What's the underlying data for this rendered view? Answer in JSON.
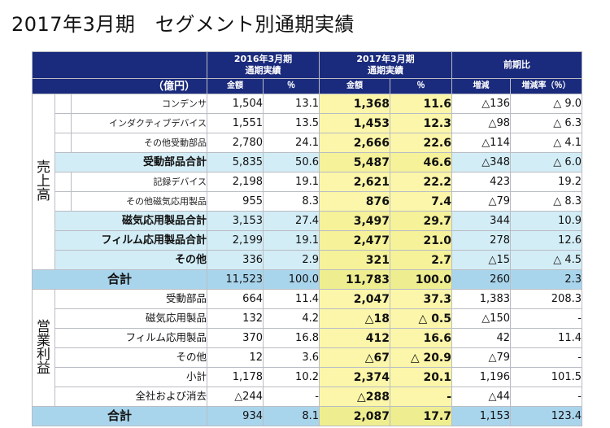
{
  "title": "2017年3月期　セグメント別通期実績",
  "header": {
    "period_prev": "2016年3月期",
    "period_prev_sub": "通期実績",
    "period_curr": "2017年3月期",
    "period_curr_sub": "通期実績",
    "comparison": "前期比",
    "unit": "（億円）",
    "col_amount": "金額",
    "col_pct": "％",
    "col_change": "増減",
    "col_change_rate": "増減率（％）"
  },
  "sections": {
    "sales": "売上高",
    "profit": "営業利益"
  },
  "sales_rows": [
    {
      "label": "コンデンサ",
      "style": "sub",
      "prev_amt": "1,504",
      "prev_pct": "13.1",
      "curr_amt": "1,368",
      "curr_pct": "11.6",
      "chg": "△136",
      "chg_rate": "△ 9.0"
    },
    {
      "label": "インダクティブデバイス",
      "style": "sub",
      "prev_amt": "1,551",
      "prev_pct": "13.5",
      "curr_amt": "1,453",
      "curr_pct": "12.3",
      "chg": "△98",
      "chg_rate": "△ 6.3"
    },
    {
      "label": "その他受動部品",
      "style": "sub",
      "prev_amt": "2,780",
      "prev_pct": "24.1",
      "curr_amt": "2,666",
      "curr_pct": "22.6",
      "chg": "△114",
      "chg_rate": "△ 4.1"
    },
    {
      "label": "受動部品合計",
      "style": "subtotal",
      "prev_amt": "5,835",
      "prev_pct": "50.6",
      "curr_amt": "5,487",
      "curr_pct": "46.6",
      "chg": "△348",
      "chg_rate": "△ 6.0"
    },
    {
      "label": "記録デバイス",
      "style": "sub",
      "prev_amt": "2,198",
      "prev_pct": "19.1",
      "curr_amt": "2,621",
      "curr_pct": "22.2",
      "chg": "423",
      "chg_rate": "19.2"
    },
    {
      "label": "その他磁気応用製品",
      "style": "sub",
      "prev_amt": "955",
      "prev_pct": "8.3",
      "curr_amt": "876",
      "curr_pct": "7.4",
      "chg": "△79",
      "chg_rate": "△ 8.3"
    },
    {
      "label": "磁気応用製品合計",
      "style": "subtotal",
      "prev_amt": "3,153",
      "prev_pct": "27.4",
      "curr_amt": "3,497",
      "curr_pct": "29.7",
      "chg": "344",
      "chg_rate": "10.9"
    },
    {
      "label": "フィルム応用製品合計",
      "style": "subtotal",
      "prev_amt": "2,199",
      "prev_pct": "19.1",
      "curr_amt": "2,477",
      "curr_pct": "21.0",
      "chg": "278",
      "chg_rate": "12.6"
    },
    {
      "label": "その他",
      "style": "subtotal",
      "prev_amt": "336",
      "prev_pct": "2.9",
      "curr_amt": "321",
      "curr_pct": "2.7",
      "chg": "△15",
      "chg_rate": "△ 4.5"
    },
    {
      "label": "合計",
      "style": "total",
      "prev_amt": "11,523",
      "prev_pct": "100.0",
      "curr_amt": "11,783",
      "curr_pct": "100.0",
      "chg": "260",
      "chg_rate": "2.3"
    }
  ],
  "profit_rows": [
    {
      "label": "受動部品",
      "style": "mid",
      "prev_amt": "664",
      "prev_pct": "11.4",
      "curr_amt": "2,047",
      "curr_pct": "37.3",
      "chg": "1,383",
      "chg_rate": "208.3"
    },
    {
      "label": "磁気応用製品",
      "style": "mid",
      "prev_amt": "132",
      "prev_pct": "4.2",
      "curr_amt": "△18",
      "curr_pct": "△ 0.5",
      "chg": "△150",
      "chg_rate": "-"
    },
    {
      "label": "フィルム応用製品",
      "style": "mid",
      "prev_amt": "370",
      "prev_pct": "16.8",
      "curr_amt": "412",
      "curr_pct": "16.6",
      "chg": "42",
      "chg_rate": "11.4"
    },
    {
      "label": "その他",
      "style": "mid",
      "prev_amt": "12",
      "prev_pct": "3.6",
      "curr_amt": "△67",
      "curr_pct": "△ 20.9",
      "chg": "△79",
      "chg_rate": "-"
    },
    {
      "label": "小計",
      "style": "mid",
      "prev_amt": "1,178",
      "prev_pct": "10.2",
      "curr_amt": "2,374",
      "curr_pct": "20.1",
      "chg": "1,196",
      "chg_rate": "101.5"
    },
    {
      "label": "全社および消去",
      "style": "mid",
      "prev_amt": "△244",
      "prev_pct": "-",
      "curr_amt": "△288",
      "curr_pct": "-",
      "chg": "△44",
      "chg_rate": "-"
    },
    {
      "label": "合計",
      "style": "total",
      "prev_amt": "934",
      "prev_pct": "8.1",
      "curr_amt": "2,087",
      "curr_pct": "17.7",
      "chg": "1,153",
      "chg_rate": "123.4"
    }
  ]
}
